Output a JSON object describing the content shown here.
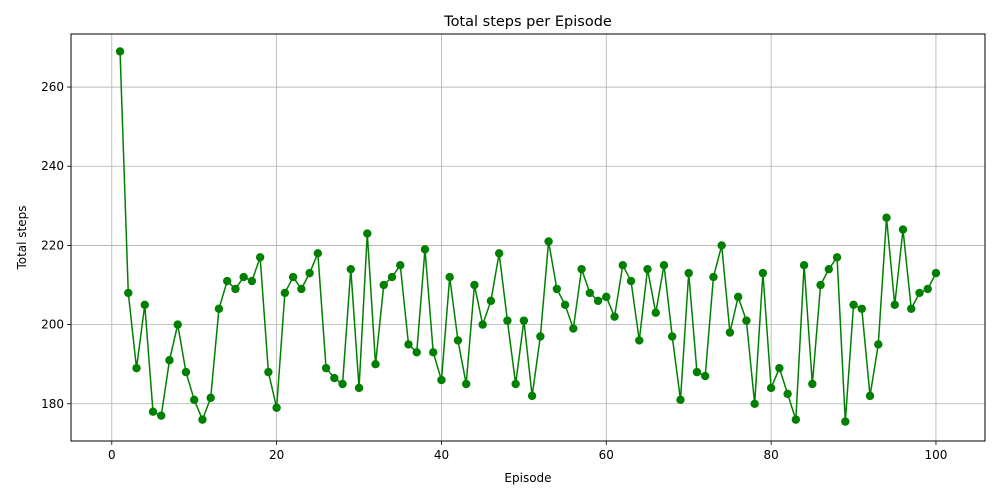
{
  "chart_data": {
    "type": "line",
    "title": "Total steps per Episode",
    "xlabel": "Episode",
    "ylabel": "Total steps",
    "xlim": [
      -4.95,
      105.95
    ],
    "ylim": [
      170.6,
      273.4
    ],
    "x_ticks": [
      0,
      20,
      40,
      60,
      80,
      100
    ],
    "y_ticks": [
      180,
      200,
      220,
      240,
      260
    ],
    "grid": true,
    "line_color": "#008000",
    "marker": "circle",
    "series": [
      {
        "x": [
          1,
          2,
          3,
          4,
          5,
          6,
          7,
          8,
          9,
          10,
          11,
          12,
          13,
          14,
          15,
          16,
          17,
          18,
          19,
          20,
          21,
          22,
          23,
          24,
          25,
          26,
          27,
          28,
          29,
          30,
          31,
          32,
          33,
          34,
          35,
          36,
          37,
          38,
          39,
          40,
          41,
          42,
          43,
          44,
          45,
          46,
          47,
          48,
          49,
          50,
          51,
          52,
          53,
          54,
          55,
          56,
          57,
          58,
          59,
          60,
          61,
          62,
          63,
          64,
          65,
          66,
          67,
          68,
          69,
          70,
          71,
          72,
          73,
          74,
          75,
          76,
          77,
          78,
          79,
          80,
          81,
          82,
          83,
          84,
          85,
          86,
          87,
          88,
          89,
          90,
          91,
          92,
          93,
          94,
          95,
          96,
          97,
          98,
          99,
          100
        ],
        "values": [
          269,
          208,
          189,
          205,
          178,
          177,
          191,
          200,
          188,
          181,
          176,
          181.5,
          204,
          211,
          209,
          212,
          211,
          217,
          188,
          179,
          208,
          212,
          209,
          213,
          218,
          189,
          186.5,
          185,
          214,
          184,
          223,
          190,
          210,
          212,
          215,
          195,
          193,
          219,
          193,
          186,
          212,
          196,
          185,
          210,
          200,
          206,
          218,
          201,
          185,
          201,
          182,
          197,
          221,
          209,
          205,
          199,
          214,
          208,
          206,
          207,
          202,
          215,
          211,
          196,
          214,
          203,
          215,
          197,
          181,
          213,
          188,
          187,
          212,
          220,
          198,
          207,
          201,
          180,
          213,
          184,
          189,
          182.5,
          176,
          215,
          185,
          210,
          214,
          217,
          175.5,
          205,
          204,
          182,
          195,
          227,
          205,
          224,
          204,
          208,
          209,
          213
        ]
      }
    ]
  }
}
